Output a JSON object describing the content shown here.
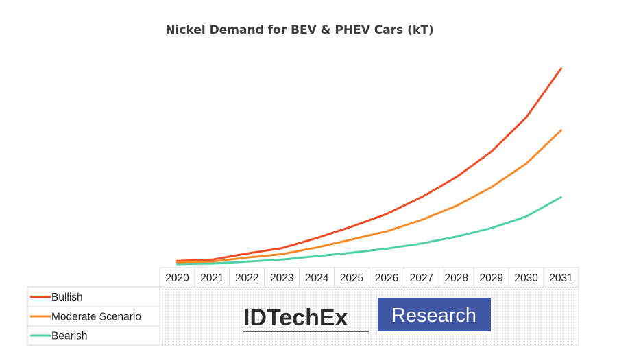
{
  "chart_data": {
    "type": "line",
    "title": "Nickel Demand for BEV & PHEV Cars (kT)",
    "xlabel": "",
    "ylabel": "",
    "categories": [
      "2020",
      "2021",
      "2022",
      "2023",
      "2024",
      "2025",
      "2026",
      "2027",
      "2028",
      "2029",
      "2030",
      "2031"
    ],
    "ylim": [
      0,
      100
    ],
    "y_axis_labels_shown": false,
    "grid": false,
    "legend_position": "bottom-left (data table legend)",
    "series": [
      {
        "name": "Bullish",
        "color": "#ef4b23",
        "values": [
          1.6,
          2.3,
          5.3,
          8.0,
          13.0,
          18.7,
          25.0,
          33.3,
          43.3,
          56.0,
          73.0,
          97.3
        ]
      },
      {
        "name": "Moderate Scenario",
        "color": "#f78b2a",
        "values": [
          0.7,
          1.3,
          3.3,
          5.0,
          8.3,
          12.3,
          16.3,
          22.0,
          29.0,
          38.3,
          50.0,
          66.6
        ]
      },
      {
        "name": "Bearish",
        "color": "#4fd1a8",
        "values": [
          0.0,
          0.3,
          1.3,
          2.3,
          4.0,
          5.7,
          7.7,
          10.3,
          13.7,
          18.0,
          23.7,
          33.3
        ]
      }
    ]
  },
  "watermark": {
    "brand": "IDTechEx",
    "suffix": "Research",
    "suffix_bg_color": "#3f56a5"
  }
}
